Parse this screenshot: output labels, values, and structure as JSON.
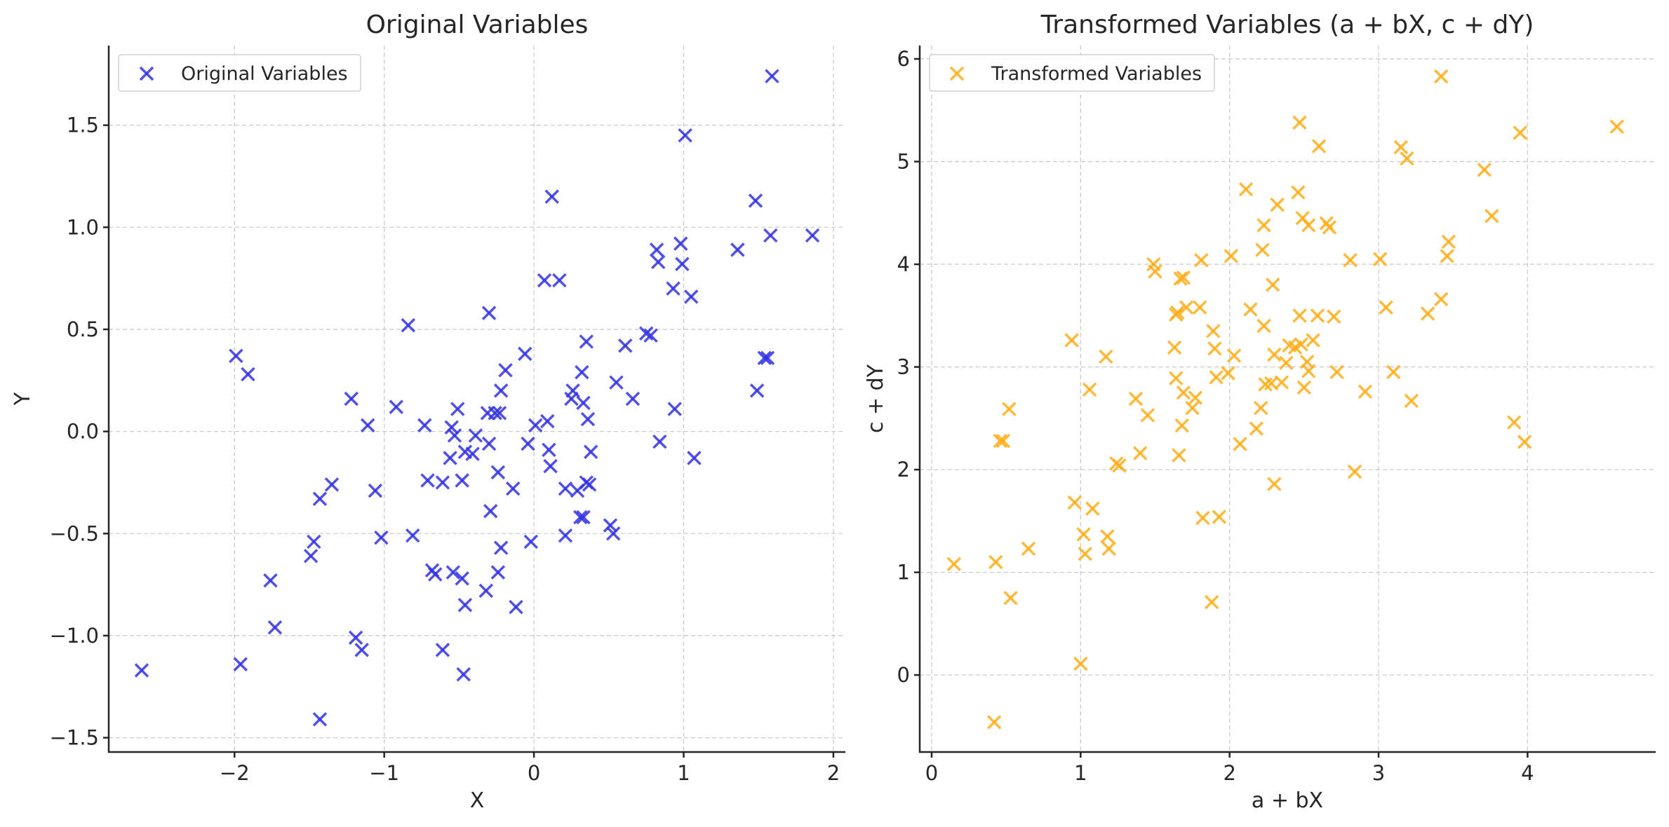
{
  "chart_data": [
    {
      "type": "scatter",
      "title": "Original Variables",
      "xlabel": "X",
      "ylabel": "Y",
      "xlim": [
        -2.84,
        2.08
      ],
      "ylim": [
        -1.57,
        1.89
      ],
      "xticks": [
        -2,
        -1,
        0,
        1,
        2
      ],
      "xtick_labels": [
        "−2",
        "−1",
        "0",
        "1",
        "2"
      ],
      "yticks": [
        -1.5,
        -1.0,
        -0.5,
        0.0,
        0.5,
        1.0,
        1.5
      ],
      "ytick_labels": [
        "−1.5",
        "−1.0",
        "−0.5",
        "0.0",
        "0.5",
        "1.0",
        "1.5"
      ],
      "grid": true,
      "legend_position": "top-left",
      "marker": "x",
      "color": "#3333e6",
      "series": [
        {
          "name": "Original Variables",
          "points": [
            [
              -2.62,
              -1.17
            ],
            [
              -1.99,
              0.37
            ],
            [
              -1.96,
              -1.14
            ],
            [
              -1.91,
              0.28
            ],
            [
              -1.76,
              -0.73
            ],
            [
              -1.73,
              -0.96
            ],
            [
              -1.49,
              -0.61
            ],
            [
              -1.47,
              -0.54
            ],
            [
              -1.43,
              -0.33
            ],
            [
              -1.43,
              -1.41
            ],
            [
              -1.35,
              -0.26
            ],
            [
              -1.22,
              0.16
            ],
            [
              -1.19,
              -1.01
            ],
            [
              -1.15,
              -1.07
            ],
            [
              -1.11,
              0.03
            ],
            [
              -1.06,
              -0.29
            ],
            [
              -1.02,
              -0.52
            ],
            [
              -0.92,
              0.12
            ],
            [
              -0.84,
              0.52
            ],
            [
              -0.81,
              -0.51
            ],
            [
              -0.73,
              0.03
            ],
            [
              -0.71,
              -0.24
            ],
            [
              -0.68,
              -0.68
            ],
            [
              -0.66,
              -0.7
            ],
            [
              -0.61,
              -0.25
            ],
            [
              -0.61,
              -1.07
            ],
            [
              -0.56,
              -0.13
            ],
            [
              -0.55,
              0.02
            ],
            [
              -0.54,
              -0.69
            ],
            [
              -0.53,
              -0.02
            ],
            [
              -0.51,
              0.11
            ],
            [
              -0.48,
              -0.24
            ],
            [
              -0.48,
              -0.72
            ],
            [
              -0.46,
              -0.85
            ],
            [
              -0.47,
              -1.19
            ],
            [
              -0.46,
              -0.1
            ],
            [
              -0.41,
              -0.11
            ],
            [
              -0.39,
              -0.02
            ],
            [
              -0.32,
              -0.78
            ],
            [
              -0.31,
              0.09
            ],
            [
              -0.3,
              0.58
            ],
            [
              -0.3,
              -0.06
            ],
            [
              -0.29,
              -0.39
            ],
            [
              -0.26,
              0.09
            ],
            [
              -0.24,
              -0.2
            ],
            [
              -0.24,
              -0.69
            ],
            [
              -0.23,
              0.09
            ],
            [
              -0.22,
              -0.57
            ],
            [
              -0.22,
              0.2
            ],
            [
              -0.19,
              0.3
            ],
            [
              -0.14,
              -0.28
            ],
            [
              -0.12,
              -0.86
            ],
            [
              -0.06,
              0.38
            ],
            [
              -0.04,
              -0.06
            ],
            [
              -0.02,
              -0.54
            ],
            [
              0.01,
              0.03
            ],
            [
              0.07,
              0.74
            ],
            [
              0.09,
              0.05
            ],
            [
              0.1,
              -0.09
            ],
            [
              0.11,
              -0.17
            ],
            [
              0.12,
              1.15
            ],
            [
              0.17,
              0.74
            ],
            [
              0.21,
              -0.28
            ],
            [
              0.21,
              -0.51
            ],
            [
              0.25,
              0.16
            ],
            [
              0.26,
              0.2
            ],
            [
              0.29,
              -0.29
            ],
            [
              0.31,
              -0.42
            ],
            [
              0.32,
              0.29
            ],
            [
              0.33,
              0.14
            ],
            [
              0.33,
              -0.42
            ],
            [
              0.35,
              0.44
            ],
            [
              0.35,
              -0.25
            ],
            [
              0.36,
              0.06
            ],
            [
              0.37,
              -0.26
            ],
            [
              0.38,
              -0.1
            ],
            [
              0.51,
              -0.46
            ],
            [
              0.53,
              -0.5
            ],
            [
              0.55,
              0.24
            ],
            [
              0.61,
              0.42
            ],
            [
              0.66,
              0.16
            ],
            [
              0.75,
              0.48
            ],
            [
              0.78,
              0.47
            ],
            [
              0.82,
              0.89
            ],
            [
              0.83,
              0.83
            ],
            [
              0.84,
              -0.05
            ],
            [
              0.93,
              0.7
            ],
            [
              0.94,
              0.11
            ],
            [
              0.98,
              0.92
            ],
            [
              0.99,
              0.82
            ],
            [
              1.01,
              1.45
            ],
            [
              1.05,
              0.66
            ],
            [
              1.07,
              -0.13
            ],
            [
              1.36,
              0.89
            ],
            [
              1.48,
              1.13
            ],
            [
              1.49,
              0.2
            ],
            [
              1.54,
              0.36
            ],
            [
              1.56,
              0.36
            ],
            [
              1.58,
              0.96
            ],
            [
              1.59,
              1.74
            ],
            [
              1.86,
              0.96
            ]
          ]
        }
      ]
    },
    {
      "type": "scatter",
      "title": "Transformed Variables (a + bX, c + dY)",
      "xlabel": "a + bX",
      "ylabel": "c + dY",
      "xlim": [
        -0.08,
        4.86
      ],
      "ylim": [
        -0.75,
        6.13
      ],
      "xticks": [
        0,
        1,
        2,
        3,
        4
      ],
      "xtick_labels": [
        "0",
        "1",
        "2",
        "3",
        "4"
      ],
      "yticks": [
        0,
        1,
        2,
        3,
        4,
        5,
        6
      ],
      "ytick_labels": [
        "0",
        "1",
        "2",
        "3",
        "4",
        "5",
        "6"
      ],
      "grid": true,
      "legend_position": "top-left",
      "marker": "x",
      "color": "#ffae19",
      "series": [
        {
          "name": "Transformed Variables",
          "points": [
            [
              0.15,
              1.08
            ],
            [
              0.42,
              -0.46
            ],
            [
              0.43,
              1.1
            ],
            [
              0.46,
              2.28
            ],
            [
              0.48,
              2.28
            ],
            [
              0.52,
              2.59
            ],
            [
              0.53,
              0.75
            ],
            [
              0.65,
              1.23
            ],
            [
              0.94,
              3.26
            ],
            [
              0.96,
              1.68
            ],
            [
              1.0,
              0.11
            ],
            [
              1.02,
              1.37
            ],
            [
              1.03,
              1.18
            ],
            [
              1.06,
              2.78
            ],
            [
              1.08,
              1.62
            ],
            [
              1.17,
              3.1
            ],
            [
              1.18,
              1.35
            ],
            [
              1.19,
              1.23
            ],
            [
              1.24,
              2.06
            ],
            [
              1.26,
              2.04
            ],
            [
              1.37,
              2.69
            ],
            [
              1.4,
              2.16
            ],
            [
              1.45,
              2.53
            ],
            [
              1.49,
              4.0
            ],
            [
              1.5,
              3.93
            ],
            [
              1.63,
              3.19
            ],
            [
              1.64,
              2.89
            ],
            [
              1.64,
              3.51
            ],
            [
              1.65,
              3.53
            ],
            [
              1.66,
              2.14
            ],
            [
              1.67,
              3.86
            ],
            [
              1.68,
              2.43
            ],
            [
              1.69,
              3.87
            ],
            [
              1.69,
              2.75
            ],
            [
              1.71,
              3.58
            ],
            [
              1.75,
              2.6
            ],
            [
              1.77,
              2.7
            ],
            [
              1.8,
              3.58
            ],
            [
              1.81,
              4.04
            ],
            [
              1.82,
              1.53
            ],
            [
              1.88,
              0.71
            ],
            [
              1.89,
              3.35
            ],
            [
              1.9,
              3.18
            ],
            [
              1.91,
              2.9
            ],
            [
              1.93,
              1.54
            ],
            [
              1.99,
              2.94
            ],
            [
              2.01,
              4.08
            ],
            [
              2.03,
              3.11
            ],
            [
              2.07,
              2.25
            ],
            [
              2.11,
              4.73
            ],
            [
              2.14,
              3.56
            ],
            [
              2.18,
              2.4
            ],
            [
              2.21,
              2.6
            ],
            [
              2.22,
              4.14
            ],
            [
              2.23,
              4.38
            ],
            [
              2.23,
              3.4
            ],
            [
              2.24,
              2.83
            ],
            [
              2.28,
              2.84
            ],
            [
              2.29,
              3.8
            ],
            [
              2.3,
              1.86
            ],
            [
              2.3,
              3.12
            ],
            [
              2.32,
              4.58
            ],
            [
              2.35,
              2.85
            ],
            [
              2.38,
              3.04
            ],
            [
              2.4,
              3.21
            ],
            [
              2.44,
              3.19
            ],
            [
              2.46,
              4.7
            ],
            [
              2.47,
              3.5
            ],
            [
              2.47,
              5.38
            ],
            [
              2.48,
              3.22
            ],
            [
              2.49,
              4.45
            ],
            [
              2.5,
              2.8
            ],
            [
              2.52,
              3.05
            ],
            [
              2.53,
              4.38
            ],
            [
              2.53,
              2.96
            ],
            [
              2.56,
              3.26
            ],
            [
              2.59,
              3.5
            ],
            [
              2.6,
              5.15
            ],
            [
              2.65,
              4.4
            ],
            [
              2.67,
              4.36
            ],
            [
              2.7,
              3.49
            ],
            [
              2.72,
              2.95
            ],
            [
              2.81,
              4.04
            ],
            [
              2.84,
              1.98
            ],
            [
              2.91,
              2.76
            ],
            [
              3.01,
              4.05
            ],
            [
              3.05,
              3.58
            ],
            [
              3.1,
              2.95
            ],
            [
              3.15,
              5.14
            ],
            [
              3.19,
              5.03
            ],
            [
              3.22,
              2.67
            ],
            [
              3.33,
              3.52
            ],
            [
              3.42,
              3.66
            ],
            [
              3.42,
              5.83
            ],
            [
              3.46,
              4.08
            ],
            [
              3.47,
              4.22
            ],
            [
              3.71,
              4.92
            ],
            [
              3.76,
              4.47
            ],
            [
              3.91,
              2.46
            ],
            [
              3.95,
              5.28
            ],
            [
              3.98,
              2.27
            ],
            [
              4.6,
              5.34
            ]
          ]
        }
      ]
    }
  ]
}
